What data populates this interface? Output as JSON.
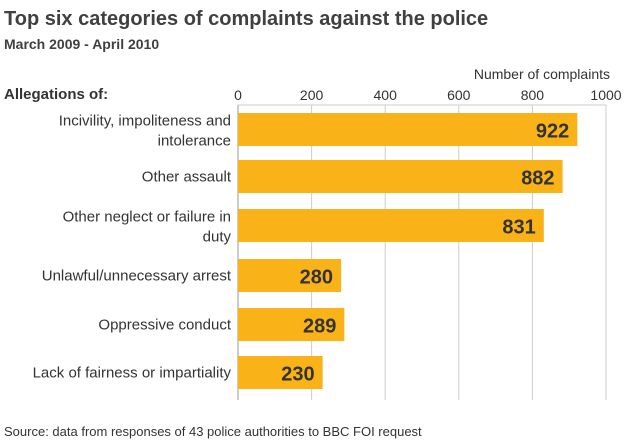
{
  "chart_data": {
    "type": "bar",
    "orientation": "horizontal",
    "title": "Top six categories of complaints against the police",
    "subtitle": "March 2009 - April 2010",
    "xlabel": "Number of complaints",
    "category_header": "Allegations of:",
    "categories": [
      [
        "Incivility, impoliteness and",
        "intolerance"
      ],
      [
        "Other assault"
      ],
      [
        "Other neglect or failure in",
        "duty"
      ],
      [
        "Unlawful/unnecessary arrest"
      ],
      [
        "Oppressive conduct"
      ],
      [
        "Lack of fairness or impartiality"
      ]
    ],
    "values": [
      922,
      882,
      831,
      280,
      289,
      230
    ],
    "xlim": [
      0,
      1000
    ],
    "xticks": [
      0,
      200,
      400,
      600,
      800,
      1000
    ],
    "grid": true,
    "bar_color": "#FAB219",
    "source": "Source: data from responses of 43 police authorities to BBC FOI request"
  }
}
